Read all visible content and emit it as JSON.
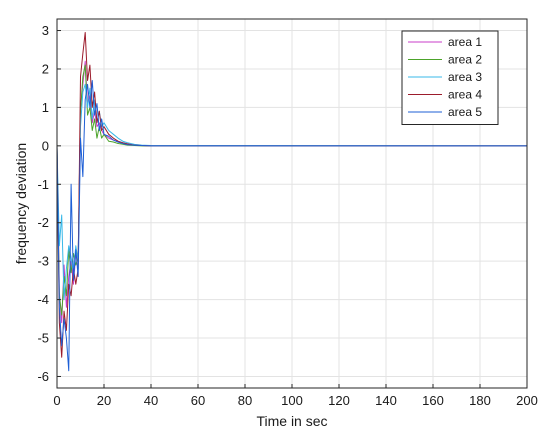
{
  "chart_data": {
    "type": "line",
    "title": "",
    "xlabel": "Time in sec",
    "ylabel": "frequency deviation",
    "xlim": [
      0,
      200
    ],
    "ylim": [
      -6.3,
      3.3
    ],
    "x_ticks": [
      0,
      20,
      40,
      60,
      80,
      100,
      120,
      140,
      160,
      180,
      200
    ],
    "y_ticks": [
      3,
      2,
      1,
      0,
      -1,
      -2,
      -3,
      -4,
      -5,
      -6
    ],
    "grid": true,
    "legend_position": "top-right",
    "series": [
      {
        "name": "area 1",
        "color": "#c83cc8",
        "x": [
          0,
          1,
          2,
          3,
          4,
          5,
          6,
          7,
          8,
          9,
          10,
          11,
          12,
          13,
          14,
          15,
          16,
          17,
          18,
          19,
          20,
          22,
          24,
          26,
          28,
          30,
          33,
          36,
          40,
          200
        ],
        "y": [
          0,
          -3.8,
          -4.6,
          -3.1,
          -4.2,
          -3.4,
          -3.0,
          -3.6,
          -2.8,
          -3.0,
          1.0,
          1.6,
          2.2,
          1.1,
          1.3,
          0.6,
          0.9,
          0.5,
          0.6,
          0.4,
          0.3,
          0.2,
          0.15,
          0.1,
          0.06,
          0.04,
          0.02,
          0.01,
          0,
          0
        ]
      },
      {
        "name": "area 2",
        "color": "#4ca32a",
        "x": [
          0,
          1,
          2,
          3,
          4,
          5,
          6,
          7,
          8,
          9,
          10,
          11,
          12,
          13,
          14,
          15,
          16,
          17,
          18,
          19,
          20,
          22,
          24,
          26,
          28,
          30,
          33,
          36,
          40,
          200
        ],
        "y": [
          0,
          -3.9,
          -4.4,
          -3.4,
          -3.9,
          -2.7,
          -3.3,
          -2.8,
          -3.1,
          -2.9,
          0.9,
          1.8,
          2.1,
          0.8,
          1.0,
          0.4,
          0.7,
          0.2,
          0.5,
          0.2,
          0.3,
          0.12,
          0.1,
          0.06,
          0.04,
          0.02,
          0.01,
          0,
          0,
          0
        ]
      },
      {
        "name": "area 3",
        "color": "#38b8e8",
        "x": [
          0,
          1,
          2,
          3,
          4,
          5,
          6,
          7,
          8,
          9,
          10,
          11,
          12,
          13,
          14,
          15,
          16,
          17,
          18,
          19,
          20,
          22,
          24,
          26,
          28,
          30,
          33,
          36,
          40,
          200
        ],
        "y": [
          0,
          -2.6,
          -1.8,
          -4.0,
          -3.2,
          -2.6,
          -2.9,
          -3.3,
          -2.6,
          -3.0,
          0.5,
          1.4,
          1.6,
          1.0,
          1.5,
          0.7,
          1.2,
          0.6,
          0.9,
          0.5,
          0.6,
          0.4,
          0.3,
          0.2,
          0.12,
          0.08,
          0.04,
          0.02,
          0.01,
          0
        ]
      },
      {
        "name": "area 4",
        "color": "#9c1c2c",
        "x": [
          0,
          1,
          2,
          3,
          4,
          5,
          6,
          7,
          8,
          9,
          10,
          11,
          12,
          13,
          14,
          15,
          16,
          17,
          18,
          19,
          20,
          22,
          24,
          26,
          28,
          30,
          33,
          36,
          40,
          200
        ],
        "y": [
          0,
          -4.6,
          -5.5,
          -4.3,
          -4.8,
          -3.6,
          -3.9,
          -3.2,
          -3.6,
          -3.2,
          1.8,
          2.4,
          2.95,
          1.7,
          2.1,
          1.0,
          1.4,
          0.6,
          0.9,
          0.4,
          0.5,
          0.3,
          0.2,
          0.12,
          0.08,
          0.05,
          0.02,
          0.01,
          0,
          0
        ]
      },
      {
        "name": "area 5",
        "color": "#1e5fd6",
        "x": [
          0,
          1,
          2,
          3,
          4,
          5,
          6,
          7,
          8,
          9,
          10,
          11,
          12,
          13,
          14,
          15,
          16,
          17,
          18,
          19,
          20,
          22,
          24,
          26,
          28,
          30,
          33,
          36,
          40,
          200
        ],
        "y": [
          0,
          -4.2,
          -5.2,
          -4.5,
          -5.0,
          -5.85,
          -1.0,
          -3.5,
          -2.7,
          -3.4,
          0.2,
          -0.8,
          1.2,
          1.6,
          1.0,
          1.7,
          0.8,
          1.1,
          0.4,
          0.7,
          0.3,
          0.25,
          0.15,
          0.1,
          0.06,
          0.03,
          0.02,
          0.01,
          0,
          0
        ]
      }
    ]
  }
}
